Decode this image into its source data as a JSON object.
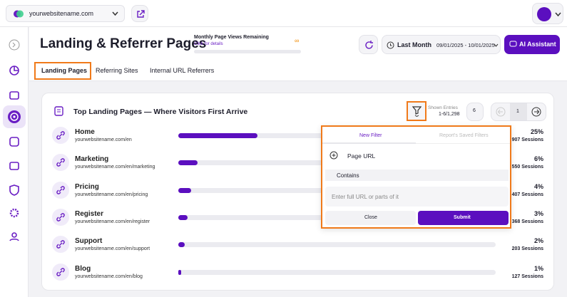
{
  "topbar": {
    "site": "yourwebsitename.com"
  },
  "header": {
    "title": "Landing & Referrer Pages",
    "quota_label": "Monthly Page Views Remaining",
    "quota_link": "Click for details",
    "quota_value": "∞",
    "period": "Last Month",
    "date_range": "09/01/2025 - 10/01/2025",
    "ai_button": "AI Assistant"
  },
  "tabs": [
    "Landing Pages",
    "Referring Sites",
    "Internal URL Referrers"
  ],
  "panel": {
    "title": "Top Landing Pages — Where Visitors First Arrive",
    "shown_label": "Shown Entries",
    "shown_range": "1-6/1,298",
    "page_size": "6",
    "page": "1"
  },
  "rows": [
    {
      "name": "Home",
      "url": "yourwebsitename.com/en",
      "percent": 25,
      "percent_label": "25%",
      "sessions": "907 Sessions"
    },
    {
      "name": "Marketing",
      "url": "yourwebsitename.com/en/marketing",
      "percent": 6,
      "percent_label": "6%",
      "sessions": "550 Sessions"
    },
    {
      "name": "Pricing",
      "url": "yourwebsitename.com/en/pricing",
      "percent": 4,
      "percent_label": "4%",
      "sessions": "407 Sessions"
    },
    {
      "name": "Register",
      "url": "yourwebsitename.com/en/register",
      "percent": 3,
      "percent_label": "3%",
      "sessions": "368 Sessions"
    },
    {
      "name": "Support",
      "url": "yourwebsitename.com/en/support",
      "percent": 2,
      "percent_label": "2%",
      "sessions": "203 Sessions"
    },
    {
      "name": "Blog",
      "url": "yourwebsitename.com/en/blog",
      "percent": 1,
      "percent_label": "1%",
      "sessions": "127 Sessions"
    }
  ],
  "filter": {
    "tab_new": "New Filter",
    "tab_saved": "Report's Saved Filters",
    "field": "Page URL",
    "operator": "Contains",
    "placeholder": "Enter full URL or parts of it",
    "close": "Close",
    "submit": "Submit"
  }
}
